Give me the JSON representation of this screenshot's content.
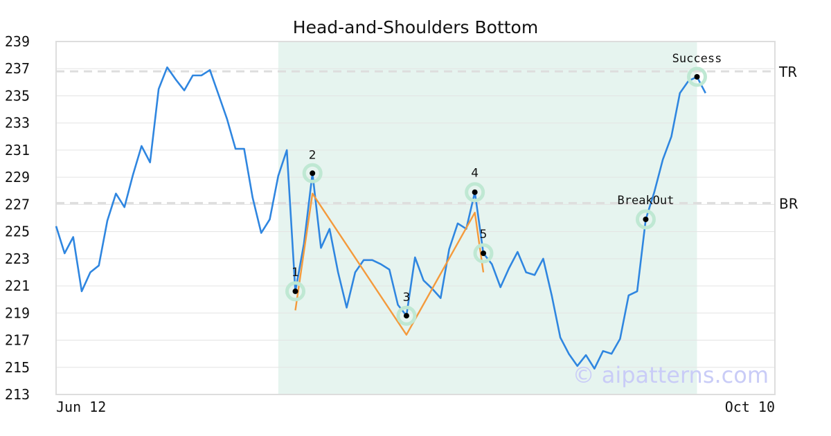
{
  "chart_data": {
    "type": "line",
    "title": "Head-and-Shoulders Bottom",
    "watermark": "© aipatterns.com",
    "ylim": [
      213,
      239
    ],
    "yticks": [
      213,
      215,
      217,
      219,
      221,
      223,
      225,
      227,
      229,
      231,
      233,
      235,
      237,
      239
    ],
    "x_labels": [
      "Jun 12",
      "Oct 10"
    ],
    "grid": true,
    "colors": {
      "price": "#2f86e0",
      "pattern": "#f49a3c",
      "highlight": "#e6f4ef",
      "marker_ring": "#bfe8d3",
      "ref_line": "#dddddd"
    },
    "series": [
      {
        "values": [
          225.4,
          223.4,
          224.6,
          220.6,
          222.0,
          222.5,
          225.8,
          227.8,
          226.8,
          229.2,
          231.3,
          230.1,
          235.5,
          237.1,
          236.2,
          235.4,
          236.5,
          236.5,
          236.9,
          235.1,
          233.3,
          231.1,
          231.1,
          227.5,
          224.9,
          225.9,
          229.1,
          231.0,
          220.6,
          224.1,
          229.3,
          223.8,
          225.2,
          222.0,
          219.4,
          222.0,
          222.9,
          222.9,
          222.6,
          222.2,
          219.6,
          218.8,
          223.1,
          221.4,
          220.8,
          220.1,
          223.7,
          225.6,
          225.2,
          227.9,
          223.4,
          222.6,
          220.9,
          222.3,
          223.5,
          222.0,
          221.8,
          223.0,
          220.3,
          217.2,
          216.0,
          215.1,
          215.9,
          214.9,
          216.2,
          216.0,
          217.1,
          220.3,
          220.6,
          225.9,
          227.9,
          230.3,
          232.0,
          235.2,
          236.1,
          236.4,
          235.2
        ]
      },
      {
        "values": [
          219.2,
          227.8,
          217.4,
          226.4,
          222.0
        ],
        "indices": [
          28,
          30,
          41,
          49,
          50
        ]
      }
    ],
    "reference_lines": [
      {
        "label": "TR",
        "value": 236.8
      },
      {
        "label": "BR",
        "value": 227.1
      }
    ],
    "points": [
      {
        "label": "1",
        "index": 28,
        "value": 220.6
      },
      {
        "label": "2",
        "index": 30,
        "value": 229.3
      },
      {
        "label": "3",
        "index": 41,
        "value": 218.8
      },
      {
        "label": "4",
        "index": 49,
        "value": 227.9
      },
      {
        "label": "5",
        "index": 50,
        "value": 223.4
      },
      {
        "label": "BreakOut",
        "index": 69,
        "value": 225.9
      },
      {
        "label": "Success",
        "index": 75,
        "value": 236.4
      }
    ],
    "highlight_range": [
      26,
      75
    ]
  }
}
